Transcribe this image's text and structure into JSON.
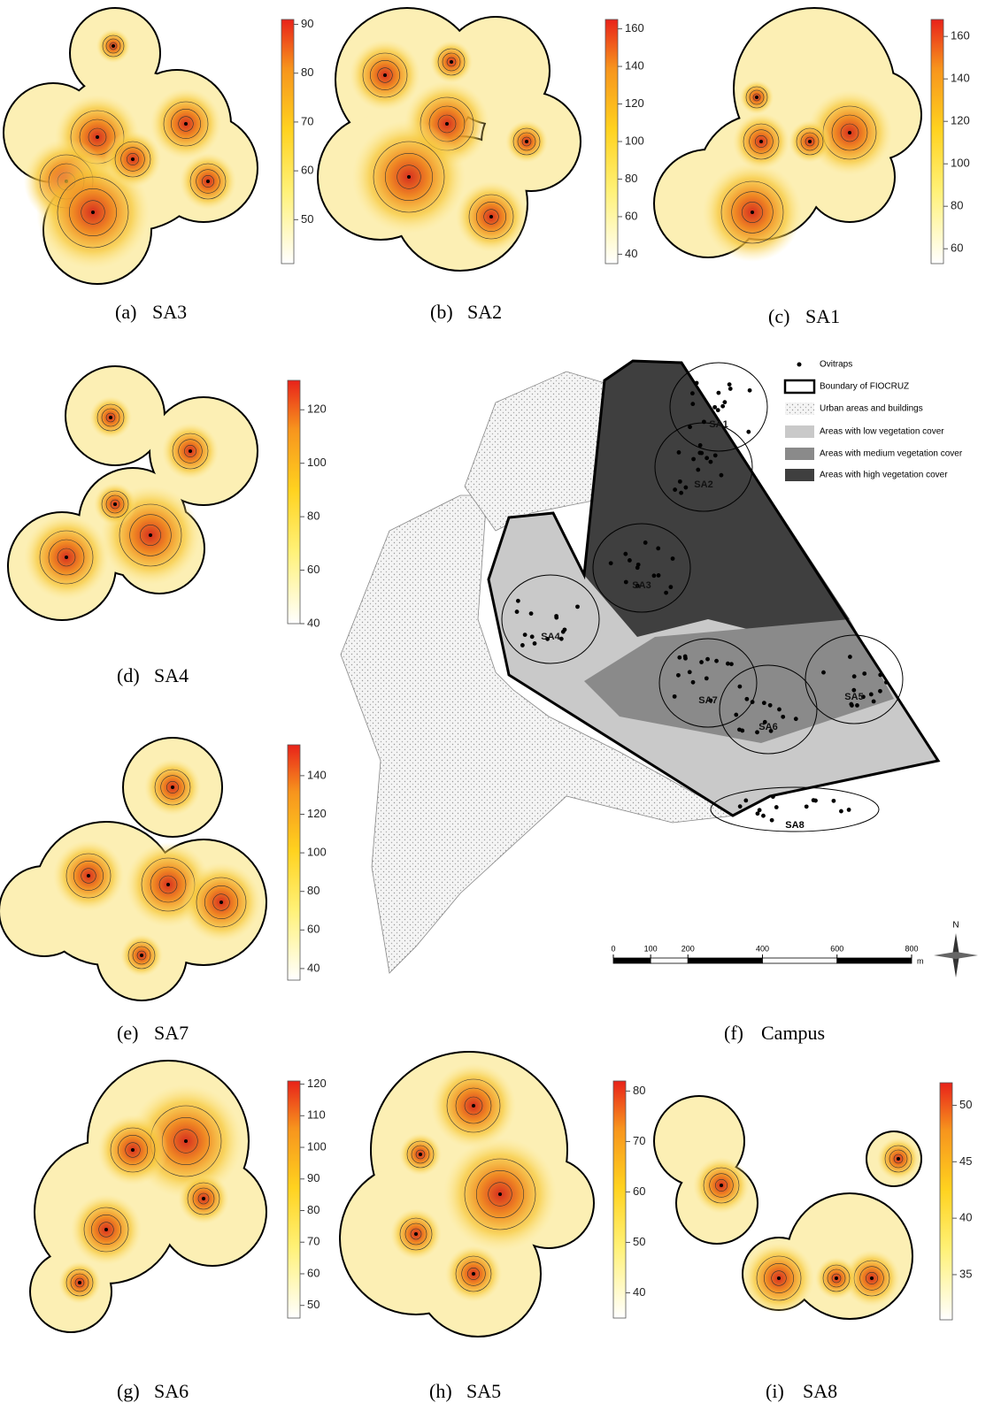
{
  "panels": [
    {
      "label": "(a)",
      "name": "SA3",
      "colorbar": {
        "range": [
          41,
          91
        ],
        "ticks": [
          50,
          60,
          70,
          80,
          90
        ]
      }
    },
    {
      "label": "(b)",
      "name": "SA2",
      "colorbar": {
        "range": [
          35,
          165
        ],
        "ticks": [
          40,
          60,
          80,
          100,
          120,
          140,
          160
        ]
      }
    },
    {
      "label": "(c)",
      "name": "SA1",
      "colorbar": {
        "range": [
          53,
          168
        ],
        "ticks": [
          60,
          80,
          100,
          120,
          140,
          160
        ]
      }
    },
    {
      "label": "(d)",
      "name": "SA4",
      "colorbar": {
        "range": [
          40,
          131
        ],
        "ticks": [
          40,
          60,
          80,
          100,
          120
        ]
      }
    },
    {
      "label": "(e)",
      "name": "SA7",
      "colorbar": {
        "range": [
          34,
          156
        ],
        "ticks": [
          40,
          60,
          80,
          100,
          120,
          140
        ]
      }
    },
    {
      "label": "(g)",
      "name": "SA6",
      "colorbar": {
        "range": [
          46,
          121
        ],
        "ticks": [
          50,
          60,
          70,
          80,
          90,
          100,
          110,
          120
        ]
      }
    },
    {
      "label": "(h)",
      "name": "SA5",
      "colorbar": {
        "range": [
          35,
          82
        ],
        "ticks": [
          40,
          50,
          60,
          70,
          80
        ]
      }
    },
    {
      "label": "(i)",
      "name": "SA8",
      "colorbar": {
        "range": [
          31,
          52
        ],
        "ticks": [
          35,
          40,
          45,
          50
        ]
      }
    }
  ],
  "campus": {
    "label": "(f)",
    "name": "Campus",
    "legend": [
      "Ovitraps",
      "Boundary of FIOCRUZ",
      "Urban areas and buildings",
      "Areas with low vegetation cover",
      "Areas with medium vegetation cover",
      "Areas with high vegetation cover"
    ],
    "areas": [
      "SA1",
      "SA2",
      "SA3",
      "SA4",
      "SA7",
      "SA6",
      "SA5",
      "SA8"
    ],
    "scale": {
      "ticks": [
        0,
        100,
        200,
        400,
        600,
        800
      ],
      "unit": "m"
    },
    "north": "N"
  }
}
